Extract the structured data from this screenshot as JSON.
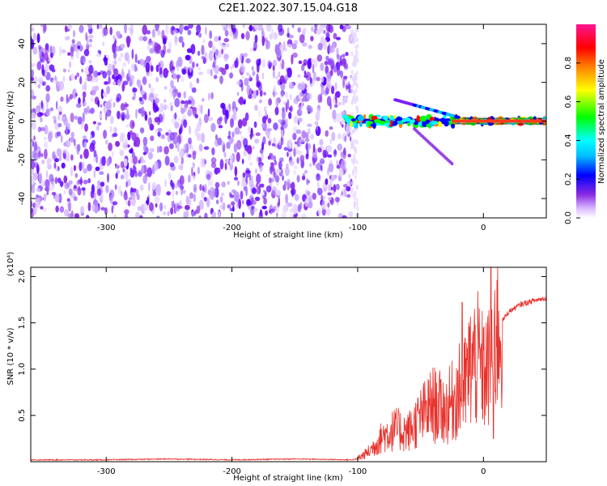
{
  "title": "C2E1.2022.307.15.04.G18",
  "chart_data": [
    {
      "type": "heatmap",
      "xlabel": "Height of straight line (km)",
      "ylabel": "Frequency (Hz)",
      "xlim": [
        -360,
        50
      ],
      "ylim": [
        -50,
        50
      ],
      "xticks": [
        -300,
        -200,
        -100,
        0
      ],
      "yticks": [
        -40,
        -20,
        0,
        20,
        40
      ],
      "colorbar": {
        "label": "Normalized spectral amplitude",
        "range": [
          0.0,
          1.0
        ],
        "ticks": [
          "0.0",
          "0.2",
          "0.4",
          "0.6",
          "0.8"
        ],
        "colormap": [
          "#ffffff",
          "#e0c8ff",
          "#8a2be2",
          "#0000ff",
          "#00bfff",
          "#00ffff",
          "#00ff00",
          "#ffff00",
          "#ff8000",
          "#ff0000",
          "#ff1493"
        ]
      },
      "features": [
        {
          "name": "noise",
          "x_range": [
            -360,
            -105
          ],
          "y_range": [
            -50,
            50
          ],
          "amplitude": [
            0.05,
            0.3
          ]
        },
        {
          "name": "carrier",
          "x_range": [
            -110,
            50
          ],
          "y_center": 0,
          "amplitude": [
            0.5,
            1.0
          ]
        },
        {
          "name": "branch",
          "x_range": [
            -70,
            -20
          ],
          "y_end": 15
        },
        {
          "name": "tail",
          "x_range": [
            -55,
            -25
          ],
          "y_end": -22
        }
      ]
    },
    {
      "type": "line",
      "xlabel": "Height of straight line (km)",
      "ylabel": "SNR (10 * v/v)",
      "multiplier": "(x10⁴)",
      "xlim": [
        -360,
        50
      ],
      "ylim": [
        0,
        2.1
      ],
      "xticks": [
        -300,
        -200,
        -100,
        0
      ],
      "yticks": [
        0.5,
        1.0,
        1.5,
        2.0
      ],
      "color": "#e8302a",
      "series": [
        {
          "x": [
            -360,
            -300,
            -250,
            -200,
            -150,
            -105,
            -100,
            -90,
            -80,
            -70,
            -60,
            -50,
            -40,
            -30,
            -20,
            -15,
            -10,
            -5,
            0,
            5,
            10,
            20,
            30,
            40,
            50
          ],
          "y": [
            0.02,
            0.02,
            0.03,
            0.02,
            0.03,
            0.02,
            0.03,
            0.12,
            0.28,
            0.35,
            0.32,
            0.48,
            0.62,
            0.55,
            0.75,
            0.8,
            1.05,
            1.1,
            0.95,
            1.0,
            1.42,
            1.62,
            1.7,
            1.74,
            1.77
          ]
        }
      ],
      "peaks": [
        {
          "x": 6,
          "y": 2.1
        },
        {
          "x": -17,
          "y": 1.72
        },
        {
          "x": 8,
          "y": 0.25
        }
      ]
    }
  ]
}
